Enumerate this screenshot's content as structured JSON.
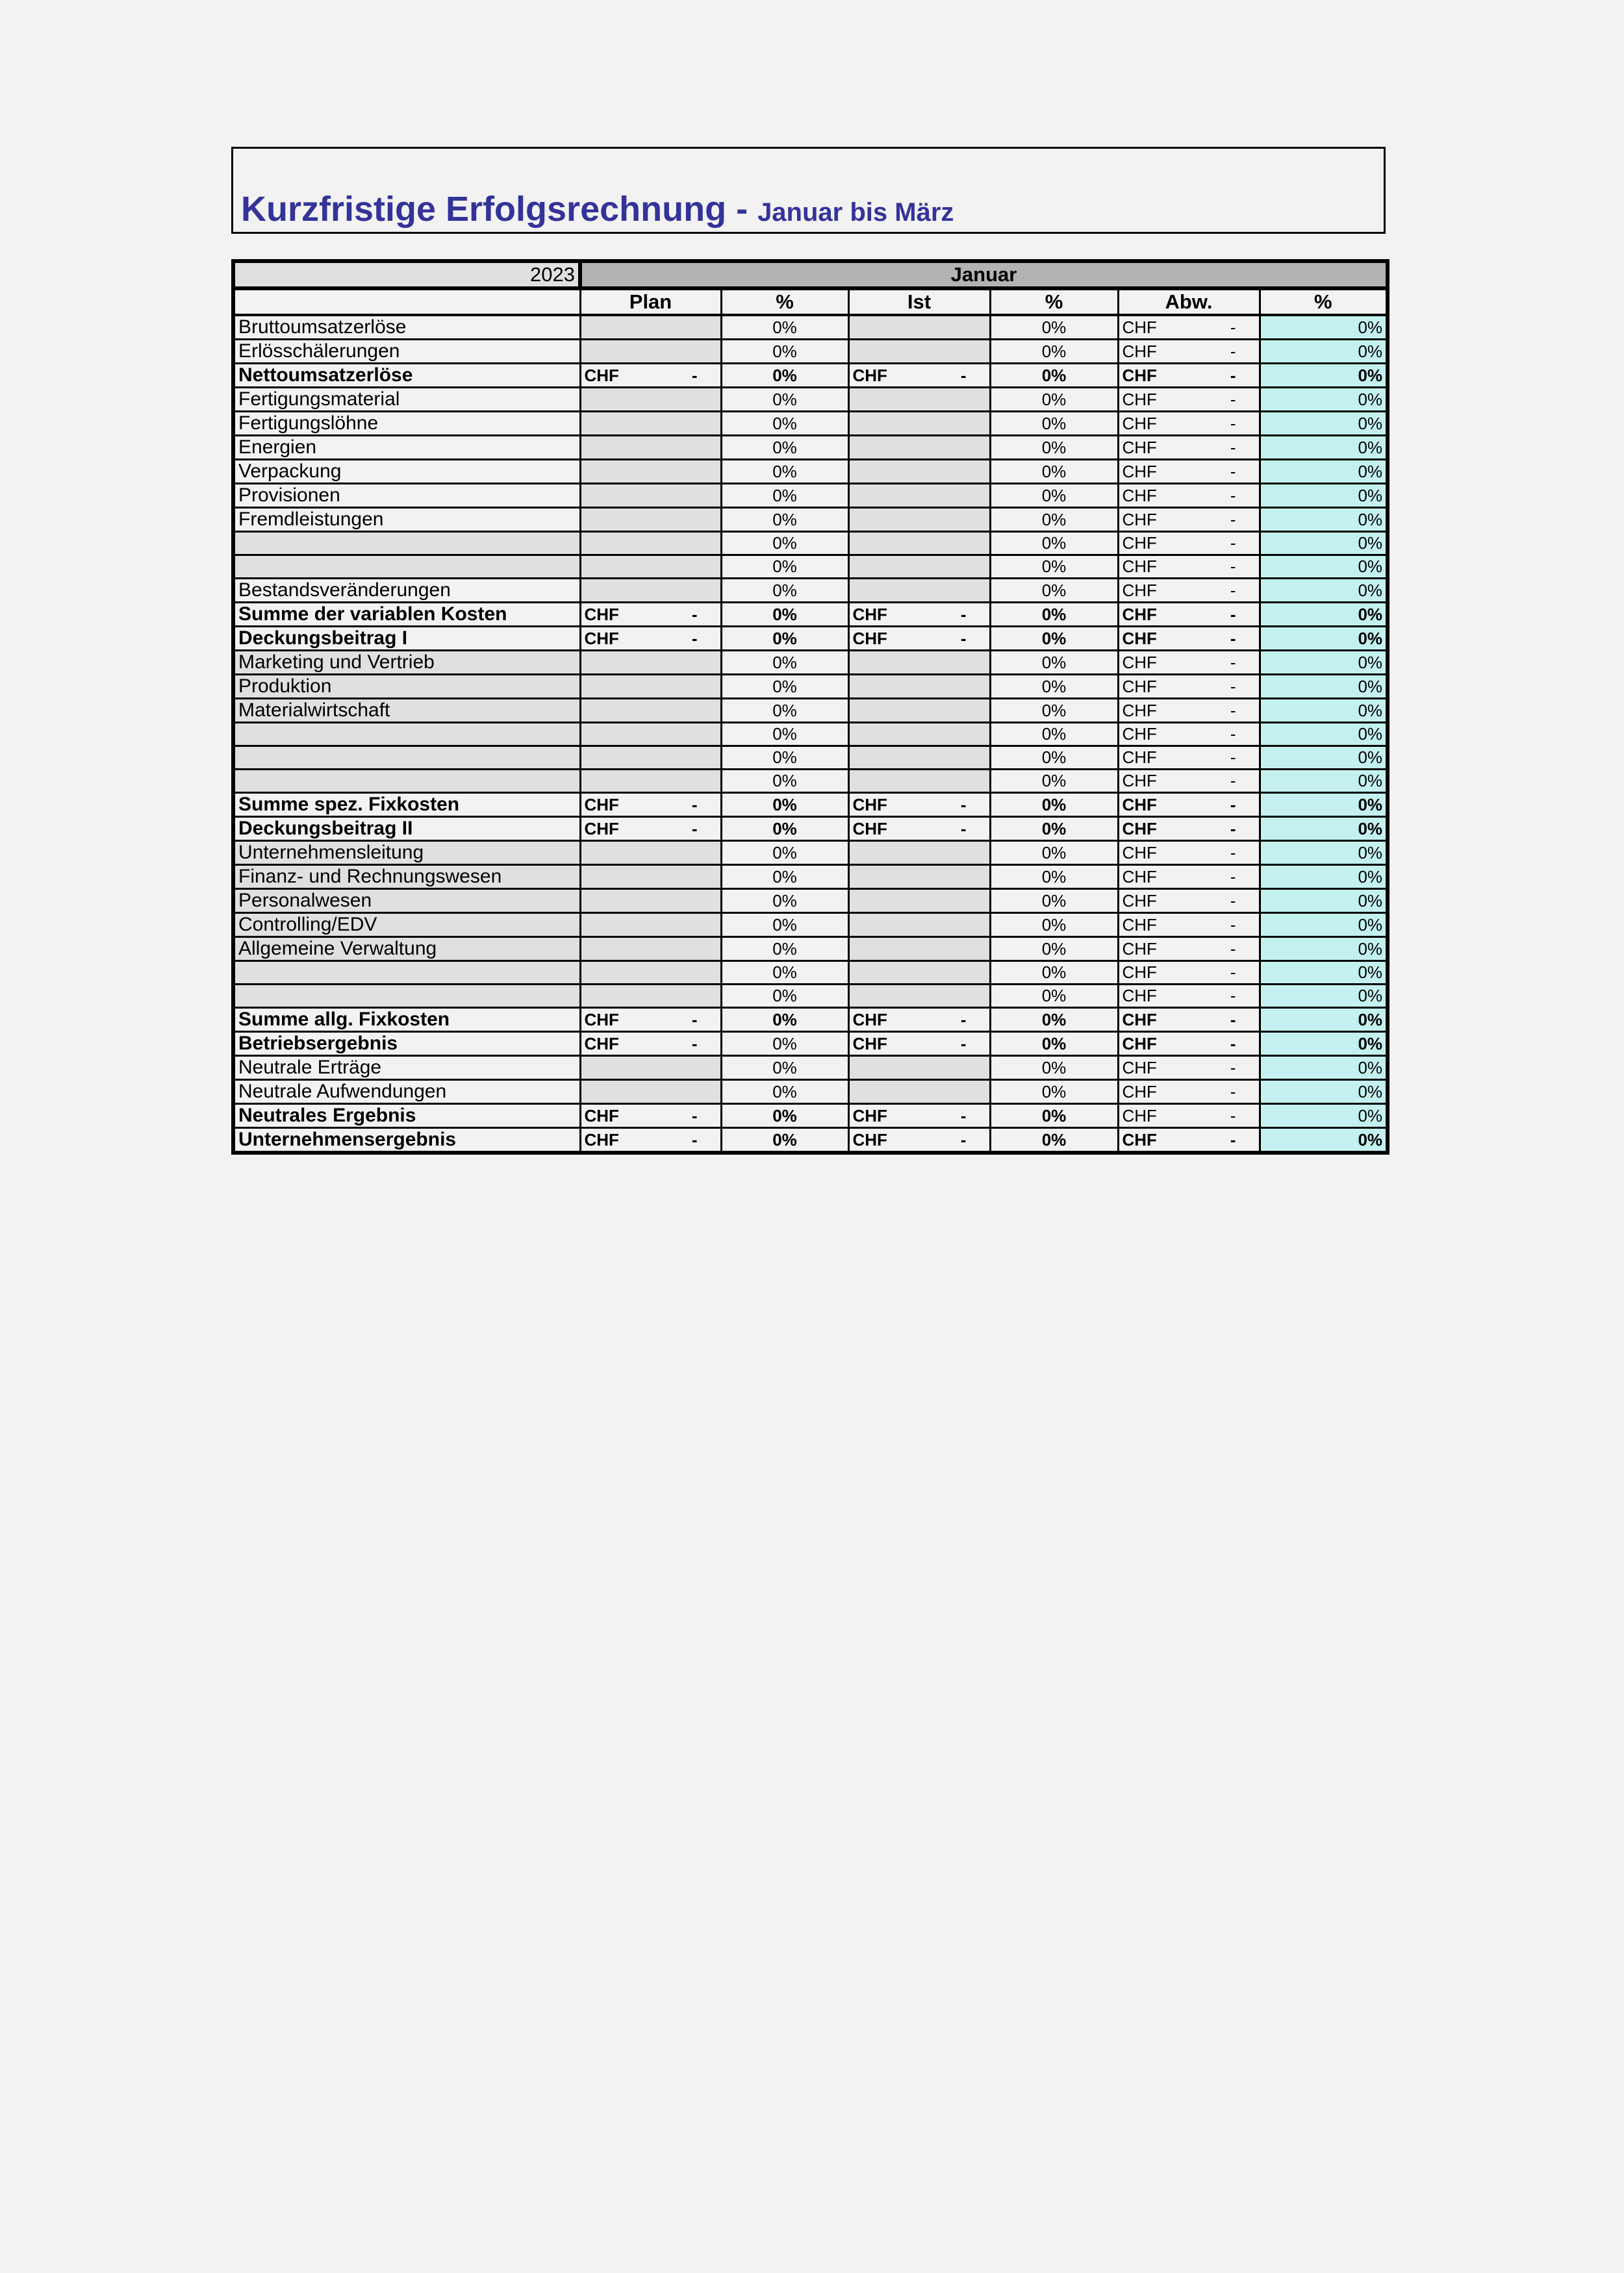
{
  "title": {
    "main": "Kurzfristige Erfolgsrechnung - ",
    "sub": "Januar bis März"
  },
  "table": {
    "year": "2023",
    "month": "Januar",
    "columns": [
      "",
      "Plan",
      "%",
      "Ist",
      "%",
      "Abw.",
      "%"
    ],
    "colors": {
      "input": "#e0e0e0",
      "deviation_pct": "#c4f1f0",
      "month_header": "#b3b3b3",
      "title": "#333399"
    },
    "rows": [
      {
        "label": "Bruttoumsatzerlöse",
        "type": "input",
        "pct": "0%",
        "ist_pct": "0%",
        "cur": "CHF",
        "abw": "-",
        "abw_pct": "0%"
      },
      {
        "label": "Erlösschälerungen",
        "type": "input",
        "pct": "0%",
        "ist_pct": "0%",
        "cur": "CHF",
        "abw": "-",
        "abw_pct": "0%"
      },
      {
        "label": "Nettoumsatzerlöse",
        "type": "sum",
        "plan_cur": "CHF",
        "plan": "-",
        "pct": "0%",
        "ist_cur": "CHF",
        "ist": "-",
        "ist_pct": "0%",
        "cur": "CHF",
        "abw": "-",
        "abw_pct": "0%"
      },
      {
        "label": "Fertigungsmaterial",
        "type": "input",
        "pct": "0%",
        "ist_pct": "0%",
        "cur": "CHF",
        "abw": "-",
        "abw_pct": "0%"
      },
      {
        "label": "Fertigungslöhne",
        "type": "input",
        "pct": "0%",
        "ist_pct": "0%",
        "cur": "CHF",
        "abw": "-",
        "abw_pct": "0%"
      },
      {
        "label": "Energien",
        "type": "input",
        "pct": "0%",
        "ist_pct": "0%",
        "cur": "CHF",
        "abw": "-",
        "abw_pct": "0%"
      },
      {
        "label": "Verpackung",
        "type": "input",
        "pct": "0%",
        "ist_pct": "0%",
        "cur": "CHF",
        "abw": "-",
        "abw_pct": "0%"
      },
      {
        "label": "Provisionen",
        "type": "input",
        "pct": "0%",
        "ist_pct": "0%",
        "cur": "CHF",
        "abw": "-",
        "abw_pct": "0%"
      },
      {
        "label": "Fremdleistungen",
        "type": "input",
        "pct": "0%",
        "ist_pct": "0%",
        "cur": "CHF",
        "abw": "-",
        "abw_pct": "0%"
      },
      {
        "label": "",
        "type": "input",
        "gray": true,
        "pct": "0%",
        "ist_pct": "0%",
        "cur": "CHF",
        "abw": "-",
        "abw_pct": "0%"
      },
      {
        "label": "",
        "type": "input",
        "gray": true,
        "pct": "0%",
        "ist_pct": "0%",
        "cur": "CHF",
        "abw": "-",
        "abw_pct": "0%"
      },
      {
        "label": "Bestandsveränderungen",
        "type": "input",
        "pct": "0%",
        "ist_pct": "0%",
        "cur": "CHF",
        "abw": "-",
        "abw_pct": "0%"
      },
      {
        "label": "Summe der variablen Kosten",
        "type": "sum",
        "plan_cur": "CHF",
        "plan": "-",
        "pct": "0%",
        "ist_cur": "CHF",
        "ist": "-",
        "ist_pct": "0%",
        "cur": "CHF",
        "abw": "-",
        "abw_pct": "0%"
      },
      {
        "label": "Deckungsbeitrag I",
        "type": "sum",
        "plan_cur": "CHF",
        "plan": "-",
        "pct": "0%",
        "ist_cur": "CHF",
        "ist": "-",
        "ist_pct": "0%",
        "cur": "CHF",
        "abw": "-",
        "abw_pct": "0%"
      },
      {
        "label": "Marketing und Vertrieb",
        "type": "input",
        "gray": true,
        "pct": "0%",
        "ist_pct": "0%",
        "cur": "CHF",
        "abw": "-",
        "abw_pct": "0%"
      },
      {
        "label": "Produktion",
        "type": "input",
        "gray": true,
        "pct": "0%",
        "ist_pct": "0%",
        "cur": "CHF",
        "abw": "-",
        "abw_pct": "0%"
      },
      {
        "label": "Materialwirtschaft",
        "type": "input",
        "gray": true,
        "pct": "0%",
        "ist_pct": "0%",
        "cur": "CHF",
        "abw": "-",
        "abw_pct": "0%"
      },
      {
        "label": "",
        "type": "input",
        "gray": true,
        "pct": "0%",
        "ist_pct": "0%",
        "cur": "CHF",
        "abw": "-",
        "abw_pct": "0%"
      },
      {
        "label": "",
        "type": "input",
        "gray": true,
        "pct": "0%",
        "ist_pct": "0%",
        "cur": "CHF",
        "abw": "-",
        "abw_pct": "0%"
      },
      {
        "label": "",
        "type": "input",
        "gray": true,
        "pct": "0%",
        "ist_pct": "0%",
        "cur": "CHF",
        "abw": "-",
        "abw_pct": "0%"
      },
      {
        "label": "Summe spez. Fixkosten",
        "type": "sum",
        "plan_cur": "CHF",
        "plan": "-",
        "pct": "0%",
        "ist_cur": "CHF",
        "ist": "-",
        "ist_pct": "0%",
        "cur": "CHF",
        "abw": "-",
        "abw_pct": "0%"
      },
      {
        "label": "Deckungsbeitrag II",
        "type": "sum",
        "plan_cur": "CHF",
        "plan": "-",
        "pct": "0%",
        "ist_cur": "CHF",
        "ist": "-",
        "ist_pct": "0%",
        "cur": "CHF",
        "abw": "-",
        "abw_pct": "0%"
      },
      {
        "label": "Unternehmensleitung",
        "type": "input",
        "gray": true,
        "pct": "0%",
        "ist_pct": "0%",
        "cur": "CHF",
        "abw": "-",
        "abw_pct": "0%"
      },
      {
        "label": "Finanz- und Rechnungswesen",
        "type": "input",
        "gray": true,
        "pct": "0%",
        "ist_pct": "0%",
        "cur": "CHF",
        "abw": "-",
        "abw_pct": "0%"
      },
      {
        "label": "Personalwesen",
        "type": "input",
        "gray": true,
        "pct": "0%",
        "ist_pct": "0%",
        "cur": "CHF",
        "abw": "-",
        "abw_pct": "0%"
      },
      {
        "label": "Controlling/EDV",
        "type": "input",
        "gray": true,
        "pct": "0%",
        "ist_pct": "0%",
        "cur": "CHF",
        "abw": "-",
        "abw_pct": "0%"
      },
      {
        "label": "Allgemeine Verwaltung",
        "type": "input",
        "gray": true,
        "pct": "0%",
        "ist_pct": "0%",
        "cur": "CHF",
        "abw": "-",
        "abw_pct": "0%"
      },
      {
        "label": "",
        "type": "input",
        "gray": true,
        "pct": "0%",
        "ist_pct": "0%",
        "cur": "CHF",
        "abw": "-",
        "abw_pct": "0%"
      },
      {
        "label": "",
        "type": "input",
        "gray": true,
        "pct": "0%",
        "ist_pct": "0%",
        "cur": "CHF",
        "abw": "-",
        "abw_pct": "0%"
      },
      {
        "label": "Summe allg. Fixkosten",
        "type": "sum",
        "plan_cur": "CHF",
        "plan": "-",
        "pct": "0%",
        "ist_cur": "CHF",
        "ist": "-",
        "ist_pct": "0%",
        "cur": "CHF",
        "abw": "-",
        "abw_pct": "0%"
      },
      {
        "label": "Betriebsergebnis",
        "type": "sum",
        "plain": [
          "pct"
        ],
        "plan_cur": "CHF",
        "plan": "-",
        "pct": "0%",
        "ist_cur": "CHF",
        "ist": "-",
        "ist_pct": "0%",
        "cur": "CHF",
        "abw": "-",
        "abw_pct": "0%"
      },
      {
        "label": "Neutrale Erträge",
        "type": "input",
        "pct": "0%",
        "ist_pct": "0%",
        "cur": "CHF",
        "abw": "-",
        "abw_pct": "0%"
      },
      {
        "label": "Neutrale Aufwendungen",
        "type": "input",
        "pct": "0%",
        "ist_pct": "0%",
        "cur": "CHF",
        "abw": "-",
        "abw_pct": "0%"
      },
      {
        "label": "Neutrales Ergebnis",
        "type": "sum",
        "plain": [
          "abw",
          "abw_pct"
        ],
        "plan_cur": "CHF",
        "plan": "-",
        "pct": "0%",
        "ist_cur": "CHF",
        "ist": "-",
        "ist_pct": "0%",
        "cur": "CHF",
        "abw": "-",
        "abw_pct": "0%"
      },
      {
        "label": "Unternehmensergebnis",
        "type": "sum",
        "plan_cur": "CHF",
        "plan": "-",
        "pct": "0%",
        "ist_cur": "CHF",
        "ist": "-",
        "ist_pct": "0%",
        "cur": "CHF",
        "abw": "-",
        "abw_pct": "0%"
      }
    ]
  }
}
